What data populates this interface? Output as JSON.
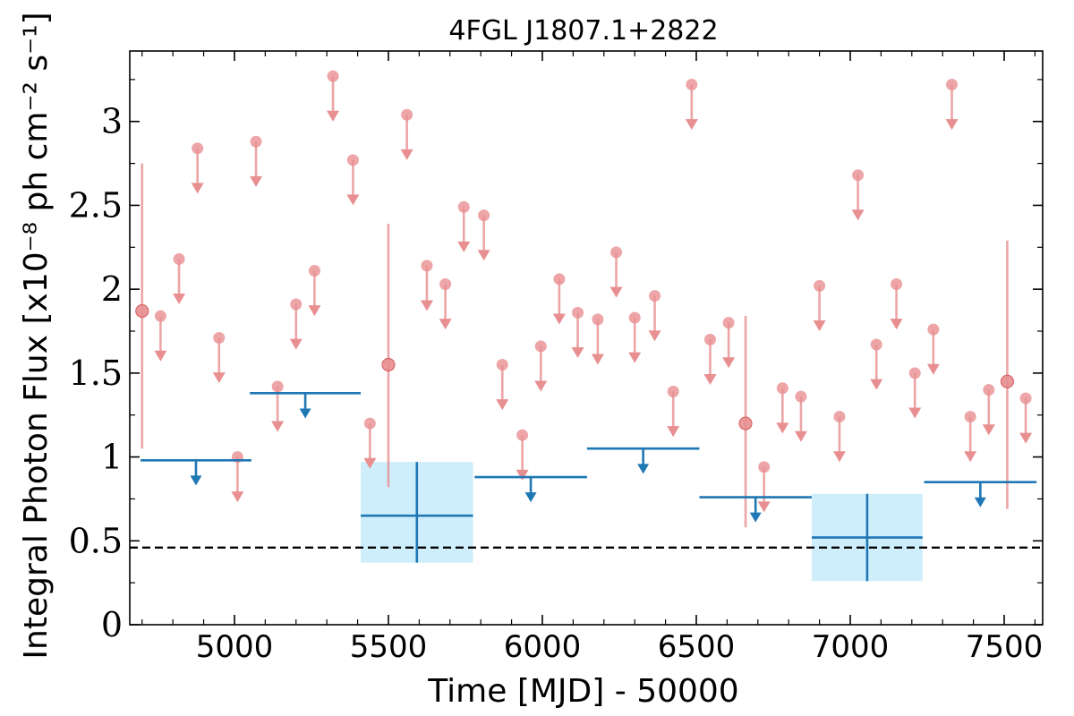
{
  "chart_data": {
    "type": "scatter",
    "title": "4FGL J1807.1+2822",
    "xlabel": "Time [MJD] - 50000",
    "ylabel": "Integral Photon Flux [x10⁻⁸ ph cm⁻² s⁻¹]",
    "xlim": [
      4660,
      7625
    ],
    "ylim": [
      0,
      3.42
    ],
    "x_ticks": [
      5000,
      5500,
      6000,
      6500,
      7000,
      7500
    ],
    "x_tick_labels": [
      "5000",
      "5500",
      "6000",
      "6500",
      "7000",
      "7500"
    ],
    "y_ticks": [
      0,
      0.5,
      1,
      1.5,
      2,
      2.5,
      3
    ],
    "y_tick_labels": [
      "0",
      "0.5",
      "1",
      "1.5",
      "2",
      "2.5",
      "3"
    ],
    "grid": false,
    "reference_line": {
      "y": 0.46,
      "style": "dashed"
    },
    "colors": {
      "fine_bins": "#e88f91",
      "coarse_bins": "#1f77b4",
      "error_box": "#cfeefc",
      "reference_line": "#000000"
    },
    "fine_detections": [
      {
        "x": 4700,
        "y": 1.87,
        "ylow": 1.05,
        "yhigh": 2.75
      },
      {
        "x": 5500,
        "y": 1.55,
        "ylow": 0.82,
        "yhigh": 2.39
      },
      {
        "x": 6660,
        "y": 1.2,
        "ylow": 0.58,
        "yhigh": 1.84
      },
      {
        "x": 7510,
        "y": 1.45,
        "ylow": 0.69,
        "yhigh": 2.29
      }
    ],
    "fine_upper_limits": [
      {
        "x": 4760,
        "y": 1.84
      },
      {
        "x": 4820,
        "y": 2.18
      },
      {
        "x": 4880,
        "y": 2.84
      },
      {
        "x": 4950,
        "y": 1.71
      },
      {
        "x": 5010,
        "y": 1.0
      },
      {
        "x": 5070,
        "y": 2.88
      },
      {
        "x": 5140,
        "y": 1.42
      },
      {
        "x": 5200,
        "y": 1.91
      },
      {
        "x": 5260,
        "y": 2.11
      },
      {
        "x": 5320,
        "y": 3.27
      },
      {
        "x": 5385,
        "y": 2.77
      },
      {
        "x": 5440,
        "y": 1.2
      },
      {
        "x": 5560,
        "y": 3.04
      },
      {
        "x": 5625,
        "y": 2.14
      },
      {
        "x": 5685,
        "y": 2.03
      },
      {
        "x": 5745,
        "y": 2.49
      },
      {
        "x": 5810,
        "y": 2.44
      },
      {
        "x": 5870,
        "y": 1.55
      },
      {
        "x": 5935,
        "y": 1.13
      },
      {
        "x": 5995,
        "y": 1.66
      },
      {
        "x": 6055,
        "y": 2.06
      },
      {
        "x": 6115,
        "y": 1.86
      },
      {
        "x": 6180,
        "y": 1.82
      },
      {
        "x": 6240,
        "y": 2.22
      },
      {
        "x": 6300,
        "y": 1.83
      },
      {
        "x": 6365,
        "y": 1.96
      },
      {
        "x": 6425,
        "y": 1.39
      },
      {
        "x": 6485,
        "y": 3.22
      },
      {
        "x": 6545,
        "y": 1.7
      },
      {
        "x": 6605,
        "y": 1.8
      },
      {
        "x": 6720,
        "y": 0.94
      },
      {
        "x": 6780,
        "y": 1.41
      },
      {
        "x": 6840,
        "y": 1.36
      },
      {
        "x": 6900,
        "y": 2.02
      },
      {
        "x": 6965,
        "y": 1.24
      },
      {
        "x": 7025,
        "y": 2.68
      },
      {
        "x": 7085,
        "y": 1.67
      },
      {
        "x": 7150,
        "y": 2.03
      },
      {
        "x": 7210,
        "y": 1.5
      },
      {
        "x": 7270,
        "y": 1.76
      },
      {
        "x": 7330,
        "y": 3.22
      },
      {
        "x": 7390,
        "y": 1.24
      },
      {
        "x": 7450,
        "y": 1.4
      },
      {
        "x": 7570,
        "y": 1.35
      }
    ],
    "coarse_detections": [
      {
        "xmin": 5410,
        "xmax": 5775,
        "y": 0.65,
        "ylow": 0.37,
        "yhigh": 0.97
      },
      {
        "xmin": 6875,
        "xmax": 7235,
        "y": 0.52,
        "ylow": 0.26,
        "yhigh": 0.78
      }
    ],
    "coarse_upper_limits": [
      {
        "xmin": 4695,
        "xmax": 5055,
        "y": 0.98
      },
      {
        "xmin": 5050,
        "xmax": 5410,
        "y": 1.38
      },
      {
        "xmin": 5780,
        "xmax": 6145,
        "y": 0.88
      },
      {
        "xmin": 6145,
        "xmax": 6510,
        "y": 1.05
      },
      {
        "xmin": 6510,
        "xmax": 6875,
        "y": 0.76
      },
      {
        "xmin": 7240,
        "xmax": 7605,
        "y": 0.85
      }
    ]
  }
}
